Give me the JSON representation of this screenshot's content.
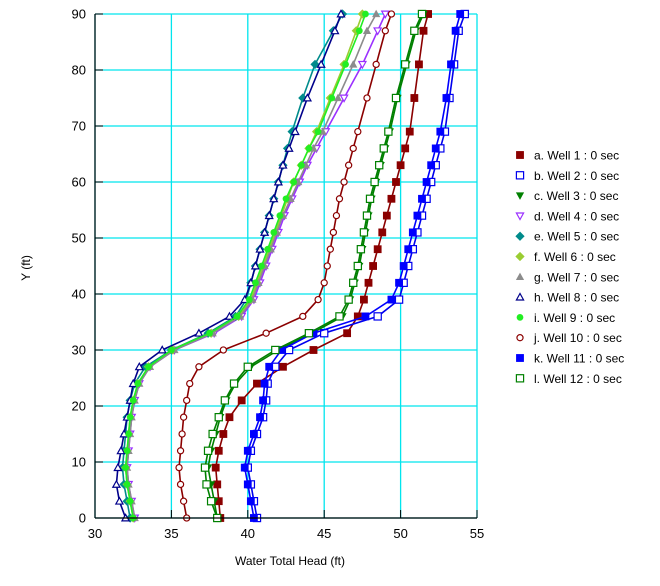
{
  "chart_data": {
    "type": "line",
    "title": "",
    "xlabel": "Water Total Head (ft)",
    "ylabel": "Y (ft)",
    "xlim": [
      30,
      55
    ],
    "ylim": [
      0,
      90
    ],
    "xticks": [
      30,
      35,
      40,
      45,
      50,
      55
    ],
    "yticks": [
      0,
      10,
      20,
      30,
      40,
      50,
      60,
      70,
      80,
      90
    ],
    "grid": true,
    "grid_color": "#00e5ee",
    "legend_position": "right",
    "series": [
      {
        "name": "a. Well 1 : 0 sec",
        "color": "#8b0000",
        "marker": "square-filled",
        "x": [
          38.2,
          38.1,
          38.0,
          37.9,
          38.1,
          38.4,
          38.8,
          39.6,
          40.6,
          42.3,
          44.3,
          46.5,
          47.2,
          47.6,
          47.9,
          48.2,
          48.5,
          48.8,
          49.1,
          49.4,
          49.7,
          50.0,
          50.3,
          50.6,
          50.9,
          51.2,
          51.5,
          51.8
        ],
        "y": [
          0,
          3,
          6,
          9,
          12,
          15,
          18,
          21,
          24,
          27,
          30,
          33,
          36,
          39,
          42,
          45,
          48,
          51,
          54,
          57,
          60,
          63,
          66,
          69,
          75,
          81,
          87,
          90
        ]
      },
      {
        "name": "b. Well 2 : 0 sec",
        "color": "#0000ee",
        "marker": "square-open",
        "x": [
          40.6,
          40.4,
          40.2,
          40.0,
          40.2,
          40.6,
          41.0,
          41.2,
          41.3,
          41.8,
          42.7,
          45.0,
          48.5,
          49.9,
          50.2,
          50.5,
          50.8,
          51.1,
          51.4,
          51.7,
          52.0,
          52.3,
          52.6,
          52.9,
          53.2,
          53.5,
          53.8,
          54.2
        ],
        "y": [
          0,
          3,
          6,
          9,
          12,
          15,
          18,
          21,
          24,
          27,
          30,
          33,
          36,
          39,
          42,
          45,
          48,
          51,
          54,
          57,
          60,
          63,
          66,
          69,
          75,
          81,
          87,
          90
        ]
      },
      {
        "name": "c. Well 3 : 0 sec",
        "color": "#008000",
        "marker": "triangle-down",
        "x": [
          38.0,
          37.8,
          37.6,
          37.4,
          37.6,
          37.9,
          38.2,
          38.6,
          39.2,
          40.2,
          42.0,
          44.2,
          46.2,
          46.7,
          47.0,
          47.3,
          47.5,
          47.7,
          47.9,
          48.1,
          48.4,
          48.7,
          49.0,
          49.3,
          49.8,
          50.4,
          51.0,
          51.5
        ],
        "y": [
          0,
          3,
          6,
          9,
          12,
          15,
          18,
          21,
          24,
          27,
          30,
          33,
          36,
          39,
          42,
          45,
          48,
          51,
          54,
          57,
          60,
          63,
          66,
          69,
          75,
          81,
          87,
          90
        ]
      },
      {
        "name": "d. Well 4 : 0 sec",
        "color": "#9b30ff",
        "marker": "triangle-down-open",
        "x": [
          32.6,
          32.4,
          32.2,
          32.1,
          32.2,
          32.3,
          32.4,
          32.6,
          32.9,
          33.6,
          35.2,
          37.8,
          39.6,
          40.4,
          40.8,
          41.2,
          41.6,
          42.0,
          42.4,
          42.9,
          43.4,
          43.9,
          44.5,
          45.1,
          46.3,
          47.5,
          48.5,
          49.0
        ],
        "y": [
          0,
          3,
          6,
          9,
          12,
          15,
          18,
          21,
          24,
          27,
          30,
          33,
          36,
          39,
          42,
          45,
          48,
          51,
          54,
          57,
          60,
          63,
          66,
          69,
          75,
          81,
          87,
          90
        ]
      },
      {
        "name": "e. Well 5 : 0 sec",
        "color": "#008b8b",
        "marker": "diamond-filled",
        "x": [
          32.3,
          32.1,
          31.9,
          31.8,
          31.9,
          32.0,
          32.1,
          32.3,
          32.6,
          33.3,
          35.0,
          37.4,
          39.2,
          39.9,
          40.2,
          40.5,
          40.8,
          41.1,
          41.4,
          41.7,
          42.0,
          42.3,
          42.6,
          42.9,
          43.6,
          44.4,
          45.6,
          46.2
        ],
        "y": [
          0,
          3,
          6,
          9,
          12,
          15,
          18,
          21,
          24,
          27,
          30,
          33,
          36,
          39,
          42,
          45,
          48,
          51,
          54,
          57,
          60,
          63,
          66,
          69,
          75,
          81,
          87,
          90
        ]
      },
      {
        "name": "f. Well 6 : 0 sec",
        "color": "#9acd32",
        "marker": "diamond-filled",
        "x": [
          32.5,
          32.3,
          32.1,
          32.0,
          32.1,
          32.2,
          32.3,
          32.5,
          32.8,
          33.5,
          35.1,
          37.6,
          39.4,
          40.2,
          40.6,
          41.0,
          41.4,
          41.8,
          42.2,
          42.6,
          43.0,
          43.5,
          44.0,
          44.5,
          45.4,
          46.3,
          47.1,
          47.5
        ],
        "y": [
          0,
          3,
          6,
          9,
          12,
          15,
          18,
          21,
          24,
          27,
          30,
          33,
          36,
          39,
          42,
          45,
          48,
          51,
          54,
          57,
          60,
          63,
          66,
          69,
          75,
          81,
          87,
          90
        ]
      },
      {
        "name": "g. Well 7 : 0 sec",
        "color": "#8c8c8c",
        "marker": "triangle-up-filled",
        "x": [
          32.6,
          32.4,
          32.2,
          32.1,
          32.2,
          32.3,
          32.4,
          32.6,
          32.9,
          33.6,
          35.2,
          37.7,
          39.5,
          40.3,
          40.7,
          41.1,
          41.5,
          41.9,
          42.3,
          42.8,
          43.3,
          43.8,
          44.3,
          44.9,
          45.9,
          46.9,
          47.8,
          48.4
        ],
        "y": [
          0,
          3,
          6,
          9,
          12,
          15,
          18,
          21,
          24,
          27,
          30,
          33,
          36,
          39,
          42,
          45,
          48,
          51,
          54,
          57,
          60,
          63,
          66,
          69,
          75,
          81,
          87,
          90
        ]
      },
      {
        "name": "h. Well 8 : 0 sec",
        "color": "#00008b",
        "marker": "triangle-up-open",
        "x": [
          32.0,
          31.6,
          31.4,
          31.5,
          31.7,
          31.9,
          32.1,
          32.3,
          32.5,
          32.9,
          34.4,
          36.8,
          38.8,
          39.8,
          40.2,
          40.5,
          40.8,
          41.1,
          41.4,
          41.7,
          42.0,
          42.3,
          42.7,
          43.1,
          43.9,
          44.8,
          45.7,
          46.1
        ],
        "y": [
          0,
          3,
          6,
          9,
          12,
          15,
          18,
          21,
          24,
          27,
          30,
          33,
          36,
          39,
          42,
          45,
          48,
          51,
          54,
          57,
          60,
          63,
          66,
          69,
          75,
          81,
          87,
          90
        ]
      },
      {
        "name": "i. Well 9 : 0 sec",
        "color": "#22ee22",
        "marker": "circle-filled",
        "x": [
          32.5,
          32.3,
          32.1,
          32.0,
          32.1,
          32.2,
          32.3,
          32.5,
          32.8,
          33.5,
          35.0,
          37.5,
          39.3,
          40.1,
          40.5,
          40.9,
          41.3,
          41.7,
          42.1,
          42.5,
          43.0,
          43.5,
          44.0,
          44.6,
          45.5,
          46.4,
          47.3,
          47.7
        ],
        "y": [
          0,
          3,
          6,
          9,
          12,
          15,
          18,
          21,
          24,
          27,
          30,
          33,
          36,
          39,
          42,
          45,
          48,
          51,
          54,
          57,
          60,
          63,
          66,
          69,
          75,
          81,
          87,
          90
        ]
      },
      {
        "name": "j. Well 10 : 0 sec",
        "color": "#8b0000",
        "marker": "circle-open",
        "x": [
          36.0,
          35.8,
          35.6,
          35.5,
          35.6,
          35.7,
          35.8,
          36.0,
          36.2,
          36.8,
          38.4,
          41.2,
          43.6,
          44.6,
          45.0,
          45.2,
          45.4,
          45.6,
          45.8,
          46.0,
          46.3,
          46.6,
          46.9,
          47.2,
          47.8,
          48.4,
          49.0,
          49.4
        ],
        "y": [
          0,
          3,
          6,
          9,
          12,
          15,
          18,
          21,
          24,
          27,
          30,
          33,
          36,
          39,
          42,
          45,
          48,
          51,
          54,
          57,
          60,
          63,
          66,
          69,
          75,
          81,
          87,
          90
        ]
      },
      {
        "name": "k. Well 11 : 0 sec",
        "color": "#0000ff",
        "marker": "square-filled",
        "x": [
          40.4,
          40.2,
          40.0,
          39.8,
          40.0,
          40.4,
          40.8,
          41.0,
          41.1,
          41.4,
          42.2,
          44.3,
          47.7,
          49.4,
          49.9,
          50.2,
          50.5,
          50.8,
          51.1,
          51.4,
          51.7,
          52.0,
          52.3,
          52.6,
          53.0,
          53.3,
          53.6,
          53.9
        ],
        "y": [
          0,
          3,
          6,
          9,
          12,
          15,
          18,
          21,
          24,
          27,
          30,
          33,
          36,
          39,
          42,
          45,
          48,
          51,
          54,
          57,
          60,
          63,
          66,
          69,
          75,
          81,
          87,
          90
        ]
      },
      {
        "name": "l. Well 12 : 0 sec",
        "color": "#008000",
        "marker": "square-open",
        "x": [
          38.0,
          37.6,
          37.3,
          37.2,
          37.4,
          37.7,
          38.1,
          38.5,
          39.1,
          40.0,
          41.8,
          44.0,
          46.0,
          46.6,
          46.9,
          47.2,
          47.4,
          47.6,
          47.8,
          48.0,
          48.3,
          48.6,
          48.9,
          49.2,
          49.7,
          50.3,
          50.9,
          51.4
        ],
        "y": [
          0,
          3,
          6,
          9,
          12,
          15,
          18,
          21,
          24,
          27,
          30,
          33,
          36,
          39,
          42,
          45,
          48,
          51,
          54,
          57,
          60,
          63,
          66,
          69,
          75,
          81,
          87,
          90
        ]
      }
    ]
  }
}
